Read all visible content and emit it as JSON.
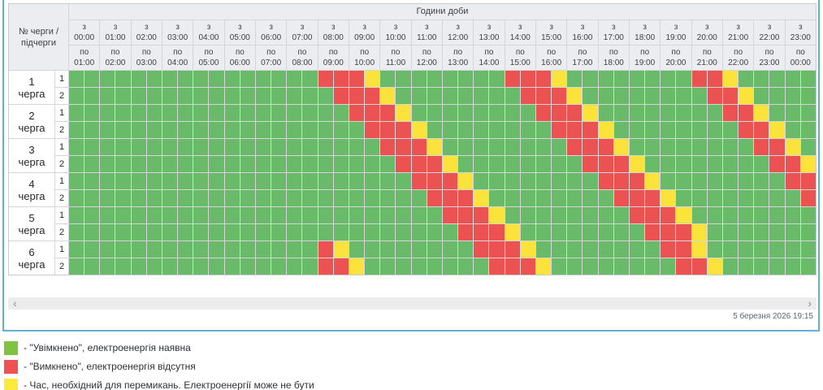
{
  "header": {
    "corner_label": "№ черги / підчерги",
    "hours_title": "Години доби",
    "from_prefix": "з",
    "to_prefix": "по",
    "hours": [
      {
        "from": "00:00",
        "to": "01:00"
      },
      {
        "from": "01:00",
        "to": "02:00"
      },
      {
        "from": "02:00",
        "to": "03:00"
      },
      {
        "from": "03:00",
        "to": "04:00"
      },
      {
        "from": "04:00",
        "to": "05:00"
      },
      {
        "from": "05:00",
        "to": "06:00"
      },
      {
        "from": "06:00",
        "to": "07:00"
      },
      {
        "from": "07:00",
        "to": "08:00"
      },
      {
        "from": "08:00",
        "to": "09:00"
      },
      {
        "from": "09:00",
        "to": "10:00"
      },
      {
        "from": "10:00",
        "to": "11:00"
      },
      {
        "from": "11:00",
        "to": "12:00"
      },
      {
        "from": "12:00",
        "to": "13:00"
      },
      {
        "from": "13:00",
        "to": "14:00"
      },
      {
        "from": "14:00",
        "to": "15:00"
      },
      {
        "from": "15:00",
        "to": "16:00"
      },
      {
        "from": "16:00",
        "to": "17:00"
      },
      {
        "from": "17:00",
        "to": "18:00"
      },
      {
        "from": "18:00",
        "to": "19:00"
      },
      {
        "from": "19:00",
        "to": "20:00"
      },
      {
        "from": "20:00",
        "to": "21:00"
      },
      {
        "from": "21:00",
        "to": "22:00"
      },
      {
        "from": "22:00",
        "to": "23:00"
      },
      {
        "from": "23:00",
        "to": "00:00"
      }
    ]
  },
  "cell_legend_note": "each row has 48 half-hour cells: G=on, R=off, Y=switching",
  "queues": [
    {
      "label_number": "1",
      "label_word": "черга",
      "subrows": [
        {
          "sub": "1",
          "cells": "GGGGGGGGGGGGGGGGRRRYGGGGGGGGRRRYGGGGGGGGRRYGGGGG"
        },
        {
          "sub": "2",
          "cells": "GGGGGGGGGGGGGGGGGRRRYGGGGGGGGRRRYGGGGGGGGRRYGGGG"
        }
      ]
    },
    {
      "label_number": "2",
      "label_word": "черга",
      "subrows": [
        {
          "sub": "1",
          "cells": "GGGGGGGGGGGGGGGGGGRRRYGGGGGGGGRRRYGGGGGGGGRRYGGG"
        },
        {
          "sub": "2",
          "cells": "GGGGGGGGGGGGGGGGGGGRRRYGGGGGGGGRRRYGGGGGGGGRRYGG"
        }
      ]
    },
    {
      "label_number": "3",
      "label_word": "черга",
      "subrows": [
        {
          "sub": "1",
          "cells": "GGGGGGGGGGGGGGGGGGGGRRRYGGGGGGGGRRRYGGGGGGGGRRYG"
        },
        {
          "sub": "2",
          "cells": "GGGGGGGGGGGGGGGGGGGGGRRRYGGGGGGGGRRRYGGGGGGGGRRY"
        }
      ]
    },
    {
      "label_number": "4",
      "label_word": "черга",
      "subrows": [
        {
          "sub": "1",
          "cells": "GGGGGGGGGGGGGGGGGGGGGGRRRYGGGGGGGGRRRYGGGGGGGGRR"
        },
        {
          "sub": "2",
          "cells": "GGGGGGGGGGGGGGGGGGGGGGGRRRYGGGGGGGGRRRYGGGGGGGGR"
        }
      ]
    },
    {
      "label_number": "5",
      "label_word": "черга",
      "subrows": [
        {
          "sub": "1",
          "cells": "GGGGGGGGGGGGGGGGGGGGGGGGRRRYGGGGGGGGRRRYGGGGGGGG"
        },
        {
          "sub": "2",
          "cells": "GGGGGGGGGGGGGGGGGGGGGGGGGRRRYGGGGGGGGRRRYGGGGGGG"
        }
      ]
    },
    {
      "label_number": "6",
      "label_word": "черга",
      "subrows": [
        {
          "sub": "1",
          "cells": "GGGGGGGGGGGGGGGGRYGGGGGGGGRRRYGGGGGGGGRRYGGGGGGG"
        },
        {
          "sub": "2",
          "cells": "GGGGGGGGGGGGGGGGRRYGGGGGGGGRRRYGGGGGGGGRRYGGGGGG"
        }
      ]
    }
  ],
  "colors": {
    "on": "#6abb69",
    "off": "#ec5252",
    "switch": "#fce33c",
    "accent_border": "#62b0d2",
    "header_bg": "#ecedf1",
    "gridline": "#d4d7da",
    "table_border": "#c6ccd2"
  },
  "legend": [
    {
      "color": "#80c342",
      "text": "- \"Увімкнено\", електроенергія наявна"
    },
    {
      "color": "#ee5253",
      "text": "- \"Вимкнено\", електроенергія відсутня"
    },
    {
      "color": "#fdea3d",
      "text": "- Час, необхідний для перемикань. Електроенергії може не бути"
    }
  ],
  "scrollbar": {
    "left_arrow": "‹",
    "right_arrow": "›"
  },
  "footer": {
    "timestamp": "5 березня 2026 19:15"
  }
}
